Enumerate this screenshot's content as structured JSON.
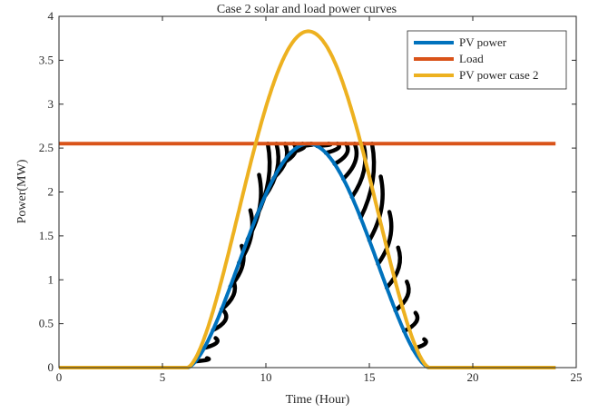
{
  "chart_data": {
    "type": "line",
    "title": "Case 2 solar and    load power curves",
    "xlabel": "Time (Hour)",
    "ylabel": "Power(MW)",
    "xlim": [
      0,
      25
    ],
    "ylim": [
      0,
      4
    ],
    "xticks": [
      0,
      5,
      10,
      15,
      20,
      25
    ],
    "yticks": [
      0,
      0.5,
      1,
      1.5,
      2,
      2.5,
      3,
      3.5,
      4
    ],
    "xtick_labels": [
      "0",
      "5",
      "10",
      "15",
      "20",
      "25"
    ],
    "ytick_labels": [
      "0",
      "0.5",
      "1",
      "1.5",
      "2",
      "2.5",
      "3",
      "3.5",
      "4"
    ],
    "grid": false,
    "legend_position": "top-right",
    "series": [
      {
        "name": "PV power",
        "color": "#0072BD",
        "peak": 2.55,
        "x": [
          0,
          6.2,
          7,
          8,
          9,
          10,
          11,
          12,
          13,
          14,
          15,
          16,
          17,
          17.9,
          24
        ],
        "values": [
          0,
          0,
          0.12,
          0.52,
          1.06,
          1.63,
          2.2,
          2.55,
          2.45,
          2.05,
          1.48,
          0.9,
          0.36,
          0,
          0
        ]
      },
      {
        "name": "Load",
        "color": "#D95319",
        "x": [
          0,
          24
        ],
        "values": [
          2.55,
          2.55
        ]
      },
      {
        "name": "PV power case 2",
        "color": "#EDB120",
        "peak": 3.83,
        "x": [
          0,
          6.2,
          7,
          8,
          9,
          10,
          11,
          12,
          13,
          14,
          15,
          16,
          17,
          17.9,
          24
        ],
        "values": [
          0,
          0,
          0.32,
          1.25,
          2.35,
          3.05,
          3.6,
          3.83,
          3.62,
          3.08,
          2.4,
          1.55,
          0.55,
          0,
          0
        ]
      }
    ],
    "shading": {
      "description": "Black hatched region between PV power and min(PV power case 2, Load)",
      "color": "#000000"
    },
    "sunrise": 6.2,
    "sunset": 17.9
  }
}
